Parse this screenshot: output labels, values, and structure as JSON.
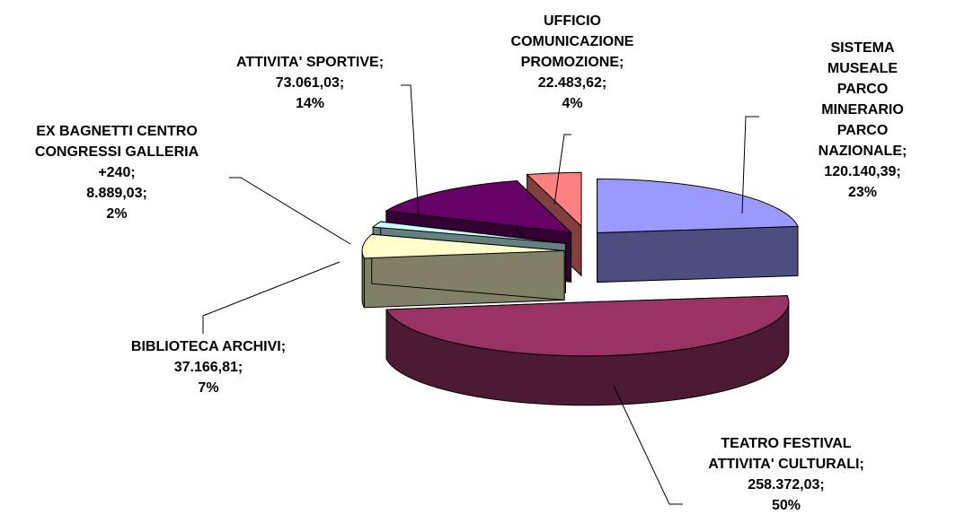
{
  "chart_data": {
    "type": "pie",
    "categories": [
      "SISTEMA MUSEALE\nPARCO MINERARIO\nPARCO NAZIONALE;",
      "TEATRO FESTIVAL\nATTIVITA' CULTURALI;",
      "BIBLIOTECA ARCHIVI;",
      "EX BAGNETTI CENTRO\nCONGRESSI GALLERIA\n+240;",
      "ATTIVITA' SPORTIVE;",
      "UFFICIO\nCOMUNICAZIONE\nPROMOZIONE;"
    ],
    "values": [
      120140.39,
      258372.03,
      37166.81,
      8889.03,
      73061.03,
      22483.62
    ],
    "value_labels": [
      "120.140,39;",
      "258.372,03;",
      "37.166,81;",
      "8.889,03;",
      "73.061,03;",
      "22.483,62;"
    ],
    "percent_labels": [
      "23%",
      "50%",
      "7%",
      "2%",
      "14%",
      "4%"
    ],
    "colors": [
      "#9999ff",
      "#993366",
      "#ffffcc",
      "#ccffff",
      "#660066",
      "#ff8080"
    ],
    "side_colors": [
      "#4d4d80",
      "#4d1a33",
      "#808066",
      "#668080",
      "#330033",
      "#804040"
    ]
  }
}
